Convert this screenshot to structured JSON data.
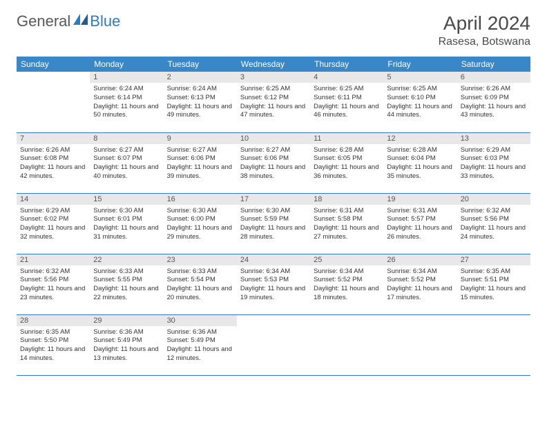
{
  "brand": {
    "part1": "General",
    "part2": "Blue"
  },
  "title": "April 2024",
  "location": "Rasesa, Botswana",
  "colors": {
    "header_bg": "#3a87c8",
    "header_text": "#ffffff",
    "daynum_bg": "#e8e8e8",
    "daynum_text": "#555555",
    "body_text": "#333333",
    "rule": "#2f7bbf",
    "brand_gray": "#585858",
    "brand_blue": "#2f7bbf"
  },
  "day_headers": [
    "Sunday",
    "Monday",
    "Tuesday",
    "Wednesday",
    "Thursday",
    "Friday",
    "Saturday"
  ],
  "weeks": [
    [
      {
        "n": "",
        "sr": "",
        "ss": "",
        "dl": ""
      },
      {
        "n": "1",
        "sr": "6:24 AM",
        "ss": "6:14 PM",
        "dl": "11 hours and 50 minutes."
      },
      {
        "n": "2",
        "sr": "6:24 AM",
        "ss": "6:13 PM",
        "dl": "11 hours and 49 minutes."
      },
      {
        "n": "3",
        "sr": "6:25 AM",
        "ss": "6:12 PM",
        "dl": "11 hours and 47 minutes."
      },
      {
        "n": "4",
        "sr": "6:25 AM",
        "ss": "6:11 PM",
        "dl": "11 hours and 46 minutes."
      },
      {
        "n": "5",
        "sr": "6:25 AM",
        "ss": "6:10 PM",
        "dl": "11 hours and 44 minutes."
      },
      {
        "n": "6",
        "sr": "6:26 AM",
        "ss": "6:09 PM",
        "dl": "11 hours and 43 minutes."
      }
    ],
    [
      {
        "n": "7",
        "sr": "6:26 AM",
        "ss": "6:08 PM",
        "dl": "11 hours and 42 minutes."
      },
      {
        "n": "8",
        "sr": "6:27 AM",
        "ss": "6:07 PM",
        "dl": "11 hours and 40 minutes."
      },
      {
        "n": "9",
        "sr": "6:27 AM",
        "ss": "6:06 PM",
        "dl": "11 hours and 39 minutes."
      },
      {
        "n": "10",
        "sr": "6:27 AM",
        "ss": "6:06 PM",
        "dl": "11 hours and 38 minutes."
      },
      {
        "n": "11",
        "sr": "6:28 AM",
        "ss": "6:05 PM",
        "dl": "11 hours and 36 minutes."
      },
      {
        "n": "12",
        "sr": "6:28 AM",
        "ss": "6:04 PM",
        "dl": "11 hours and 35 minutes."
      },
      {
        "n": "13",
        "sr": "6:29 AM",
        "ss": "6:03 PM",
        "dl": "11 hours and 33 minutes."
      }
    ],
    [
      {
        "n": "14",
        "sr": "6:29 AM",
        "ss": "6:02 PM",
        "dl": "11 hours and 32 minutes."
      },
      {
        "n": "15",
        "sr": "6:30 AM",
        "ss": "6:01 PM",
        "dl": "11 hours and 31 minutes."
      },
      {
        "n": "16",
        "sr": "6:30 AM",
        "ss": "6:00 PM",
        "dl": "11 hours and 29 minutes."
      },
      {
        "n": "17",
        "sr": "6:30 AM",
        "ss": "5:59 PM",
        "dl": "11 hours and 28 minutes."
      },
      {
        "n": "18",
        "sr": "6:31 AM",
        "ss": "5:58 PM",
        "dl": "11 hours and 27 minutes."
      },
      {
        "n": "19",
        "sr": "6:31 AM",
        "ss": "5:57 PM",
        "dl": "11 hours and 26 minutes."
      },
      {
        "n": "20",
        "sr": "6:32 AM",
        "ss": "5:56 PM",
        "dl": "11 hours and 24 minutes."
      }
    ],
    [
      {
        "n": "21",
        "sr": "6:32 AM",
        "ss": "5:56 PM",
        "dl": "11 hours and 23 minutes."
      },
      {
        "n": "22",
        "sr": "6:33 AM",
        "ss": "5:55 PM",
        "dl": "11 hours and 22 minutes."
      },
      {
        "n": "23",
        "sr": "6:33 AM",
        "ss": "5:54 PM",
        "dl": "11 hours and 20 minutes."
      },
      {
        "n": "24",
        "sr": "6:34 AM",
        "ss": "5:53 PM",
        "dl": "11 hours and 19 minutes."
      },
      {
        "n": "25",
        "sr": "6:34 AM",
        "ss": "5:52 PM",
        "dl": "11 hours and 18 minutes."
      },
      {
        "n": "26",
        "sr": "6:34 AM",
        "ss": "5:52 PM",
        "dl": "11 hours and 17 minutes."
      },
      {
        "n": "27",
        "sr": "6:35 AM",
        "ss": "5:51 PM",
        "dl": "11 hours and 15 minutes."
      }
    ],
    [
      {
        "n": "28",
        "sr": "6:35 AM",
        "ss": "5:50 PM",
        "dl": "11 hours and 14 minutes."
      },
      {
        "n": "29",
        "sr": "6:36 AM",
        "ss": "5:49 PM",
        "dl": "11 hours and 13 minutes."
      },
      {
        "n": "30",
        "sr": "6:36 AM",
        "ss": "5:49 PM",
        "dl": "11 hours and 12 minutes."
      },
      {
        "n": "",
        "sr": "",
        "ss": "",
        "dl": ""
      },
      {
        "n": "",
        "sr": "",
        "ss": "",
        "dl": ""
      },
      {
        "n": "",
        "sr": "",
        "ss": "",
        "dl": ""
      },
      {
        "n": "",
        "sr": "",
        "ss": "",
        "dl": ""
      }
    ]
  ],
  "labels": {
    "sunrise": "Sunrise:",
    "sunset": "Sunset:",
    "daylight": "Daylight:"
  }
}
